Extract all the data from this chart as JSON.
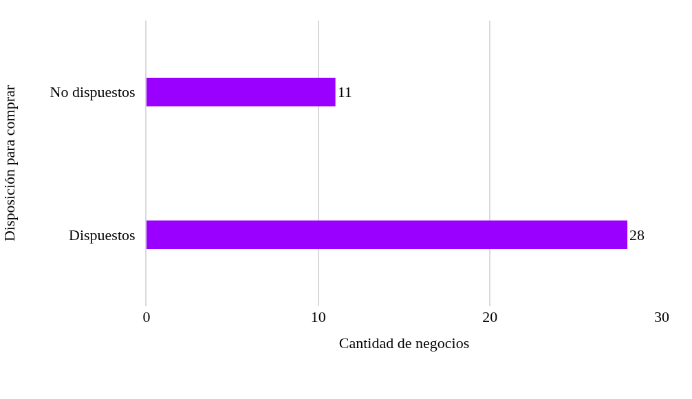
{
  "chart_data": {
    "type": "bar",
    "orientation": "horizontal",
    "categories": [
      "No dispuestos",
      "Dispuestos"
    ],
    "values": [
      11,
      28
    ],
    "color": "#9900ff",
    "xlabel": "Cantidad de negocios",
    "ylabel": "Disposición para comprar",
    "xlim": [
      0,
      30
    ],
    "xticks": [
      0,
      10,
      20,
      30
    ],
    "grid": "x",
    "data_labels": true
  }
}
